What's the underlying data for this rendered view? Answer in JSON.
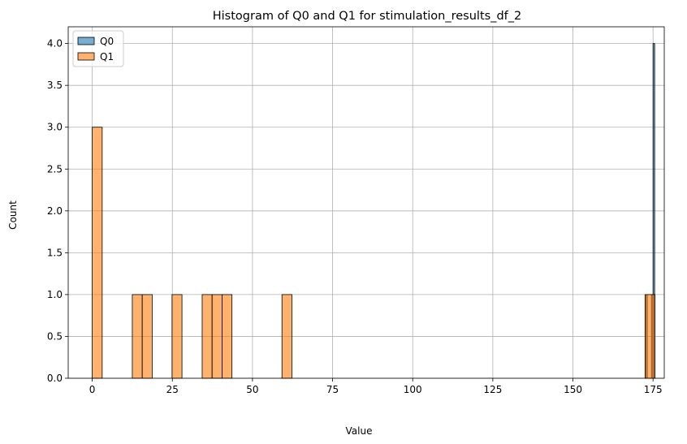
{
  "chart_data": {
    "type": "bar",
    "title": "Histogram of Q0 and Q1 for stimulation_results_df_2",
    "xlabel": "Value",
    "ylabel": "Count",
    "xlim": [
      -7.5,
      178.5
    ],
    "ylim": [
      0,
      4.2
    ],
    "xticks": [
      0,
      25,
      50,
      75,
      100,
      125,
      150,
      175
    ],
    "yticks": [
      0.0,
      0.5,
      1.0,
      1.5,
      2.0,
      2.5,
      3.0,
      3.5,
      4.0
    ],
    "xtick_labels": [
      "0",
      "25",
      "50",
      "75",
      "100",
      "125",
      "150",
      "175"
    ],
    "ytick_labels": [
      "0.0",
      "0.5",
      "1.0",
      "1.5",
      "2.0",
      "2.5",
      "3.0",
      "3.5",
      "4.0"
    ],
    "grid": true,
    "legend_position": "top-left",
    "series": [
      {
        "name": "Q0",
        "color": "#1f77b4",
        "bins": [
          {
            "x0": 172.7,
            "x1": 173.2,
            "count": 1
          },
          {
            "x0": 174.5,
            "x1": 175.0,
            "count": 1
          },
          {
            "x0": 175.0,
            "x1": 175.5,
            "count": 4
          }
        ]
      },
      {
        "name": "Q1",
        "color": "#ff7f0e",
        "bins": [
          {
            "x0": 0.0,
            "x1": 3.1,
            "count": 3
          },
          {
            "x0": 12.5,
            "x1": 15.6,
            "count": 1
          },
          {
            "x0": 15.6,
            "x1": 18.7,
            "count": 1
          },
          {
            "x0": 24.9,
            "x1": 28.0,
            "count": 1
          },
          {
            "x0": 34.3,
            "x1": 37.4,
            "count": 1
          },
          {
            "x0": 37.4,
            "x1": 40.5,
            "count": 1
          },
          {
            "x0": 40.5,
            "x1": 43.6,
            "count": 1
          },
          {
            "x0": 59.2,
            "x1": 62.3,
            "count": 1
          },
          {
            "x0": 172.5,
            "x1": 175.6,
            "count": 1
          }
        ]
      }
    ]
  }
}
